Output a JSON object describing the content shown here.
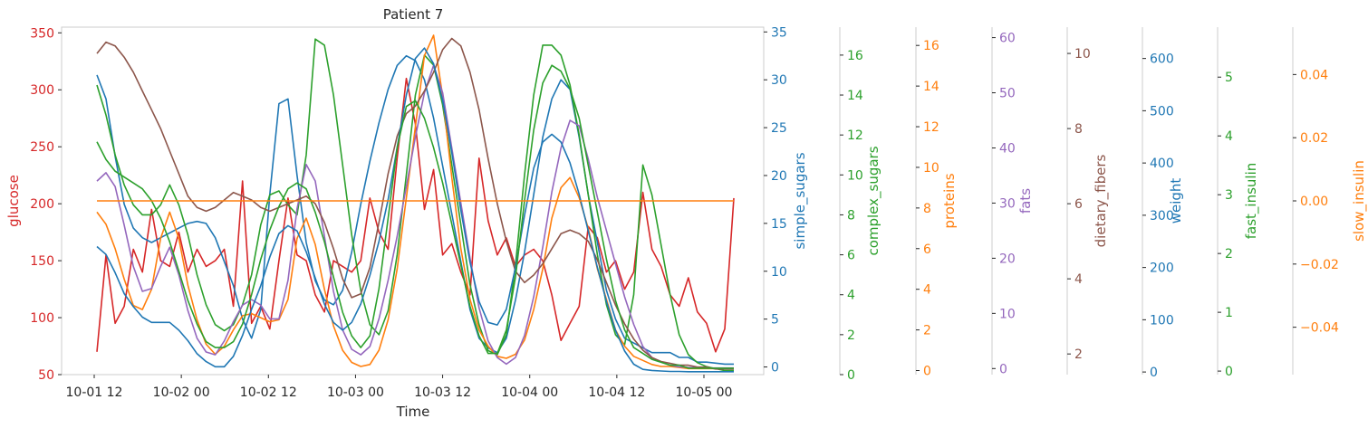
{
  "chart_data": {
    "type": "line",
    "title": "Patient 7",
    "xlabel": "Time",
    "x_ticks": [
      "10-01 12",
      "10-02 00",
      "10-02 12",
      "10-03 00",
      "10-03 12",
      "10-04 00",
      "10-04 12",
      "10-05 00"
    ],
    "grid": false,
    "x": [
      0,
      0.5,
      1,
      1.5,
      2,
      2.5,
      3,
      3.5,
      4,
      4.5,
      5,
      5.5,
      6,
      6.5,
      7,
      7.5,
      8,
      8.5,
      9,
      9.5,
      10,
      10.5,
      11,
      11.5,
      12,
      12.5,
      13,
      13.5,
      14,
      14.5,
      15,
      15.5,
      16,
      16.5,
      17,
      17.5,
      18,
      18.5,
      19,
      19.5,
      20,
      20.5,
      21,
      21.5,
      22,
      22.5,
      23,
      23.5,
      24,
      24.5,
      25,
      25.5,
      26,
      26.5,
      27,
      27.5,
      28,
      28.5,
      29,
      29.5,
      30,
      30.5,
      31,
      31.5,
      32,
      32.5,
      33,
      33.5,
      34,
      34.5,
      35
    ],
    "axes": [
      {
        "name": "glucose",
        "side": "left",
        "color": "#d62728",
        "ylim": [
          50,
          355
        ],
        "ticks": [
          50,
          100,
          150,
          200,
          250,
          300,
          350
        ],
        "tick_labels": [
          "50",
          "100",
          "150",
          "200",
          "250",
          "300",
          "350"
        ]
      },
      {
        "name": "simple_sugars",
        "side": "right",
        "color": "#1f77b4",
        "ylim": [
          -0.8,
          35.5
        ],
        "ticks": [
          0,
          5,
          10,
          15,
          20,
          25,
          30,
          35
        ],
        "tick_labels": [
          "0",
          "5",
          "10",
          "15",
          "20",
          "25",
          "30",
          "35"
        ]
      },
      {
        "name": "complex_sugars",
        "side": "right",
        "color": "#2ca02c",
        "ylim": [
          0,
          17.4
        ],
        "ticks": [
          0,
          2,
          4,
          6,
          8,
          10,
          12,
          14,
          16
        ],
        "tick_labels": [
          "0",
          "2",
          "4",
          "6",
          "8",
          "10",
          "12",
          "14",
          "16"
        ]
      },
      {
        "name": "proteins",
        "side": "right",
        "color": "#ff7f0e",
        "ylim": [
          -0.2,
          16.9
        ],
        "ticks": [
          0,
          2,
          4,
          6,
          8,
          10,
          12,
          14,
          16
        ],
        "tick_labels": [
          "0",
          "2",
          "4",
          "6",
          "8",
          "10",
          "12",
          "14",
          "16"
        ]
      },
      {
        "name": "fats",
        "side": "right",
        "color": "#9467bd",
        "ylim": [
          -1.1,
          61.9
        ],
        "ticks": [
          0,
          10,
          20,
          30,
          40,
          50,
          60
        ],
        "tick_labels": [
          "0",
          "10",
          "20",
          "30",
          "40",
          "50",
          "60"
        ]
      },
      {
        "name": "dietary_fibers",
        "side": "right",
        "color": "#8c564b",
        "ylim": [
          1.45,
          10.7
        ],
        "ticks": [
          2,
          4,
          6,
          8,
          10
        ],
        "tick_labels": [
          "2",
          "4",
          "6",
          "8",
          "10"
        ]
      },
      {
        "name": "weight",
        "side": "right",
        "color": "#1f77b4",
        "ylim": [
          -5,
          660
        ],
        "ticks": [
          0,
          100,
          200,
          300,
          400,
          500,
          600
        ],
        "tick_labels": [
          "0",
          "100",
          "200",
          "300",
          "400",
          "500",
          "600"
        ]
      },
      {
        "name": "fast_insulin",
        "side": "right",
        "color": "#2ca02c",
        "ylim": [
          -0.06,
          5.85
        ],
        "ticks": [
          0,
          1,
          2,
          3,
          4,
          5
        ],
        "tick_labels": [
          "0",
          "1",
          "2",
          "3",
          "4",
          "5"
        ]
      },
      {
        "name": "slow_insulin",
        "side": "right",
        "color": "#ff7f0e",
        "ylim": [
          -0.055,
          0.055
        ],
        "ticks": [
          -0.04,
          -0.02,
          0.0,
          0.02,
          0.04
        ],
        "tick_labels": [
          "−0.04",
          "−0.02",
          "0.00",
          "0.02",
          "0.04"
        ]
      }
    ],
    "series": [
      {
        "name": "glucose",
        "axis": 0,
        "color": "#d62728",
        "values": [
          70,
          155,
          95,
          110,
          160,
          140,
          195,
          150,
          145,
          175,
          140,
          160,
          145,
          150,
          160,
          110,
          220,
          95,
          110,
          90,
          150,
          205,
          155,
          150,
          120,
          105,
          150,
          145,
          140,
          150,
          205,
          175,
          160,
          240,
          310,
          270,
          195,
          230,
          155,
          165,
          140,
          120,
          240,
          185,
          155,
          170,
          145,
          155,
          160,
          150,
          120,
          80,
          95,
          110,
          180,
          170,
          140,
          150,
          125,
          140,
          210,
          160,
          145,
          120,
          110,
          135,
          105,
          95,
          70,
          90,
          205
        ]
      },
      {
        "name": "simple_sugars",
        "axis": 1,
        "color": "#1f77b4",
        "values": [
          30.5,
          28,
          22,
          17,
          14.5,
          13.5,
          13,
          13.5,
          14,
          14.5,
          15,
          15.2,
          15,
          13.5,
          11,
          8.5,
          5,
          3,
          6,
          18,
          27.5,
          28,
          20,
          13,
          9,
          7,
          6.5,
          8,
          12,
          17,
          21.5,
          25.5,
          29,
          31.5,
          32.5,
          32,
          30,
          26,
          21,
          16,
          11,
          6,
          3,
          2,
          1.5,
          3,
          7,
          12,
          18,
          24,
          28,
          30,
          29,
          24,
          18,
          13,
          8,
          5,
          3,
          2.5,
          2,
          1.5,
          1.5,
          1.5,
          1,
          1,
          0.5,
          0.5,
          0.4,
          0.3,
          0.3
        ]
      },
      {
        "name": "complex_sugars",
        "axis": 2,
        "color": "#2ca02c",
        "values": [
          14.5,
          13,
          11,
          9.5,
          8.5,
          8,
          8,
          8.5,
          9.5,
          8.5,
          7,
          5,
          3.5,
          2.5,
          2.2,
          2.5,
          3.5,
          5,
          7.5,
          9,
          9.2,
          8.5,
          8,
          11,
          16.8,
          16.5,
          14,
          10.5,
          7,
          4.2,
          2.5,
          2,
          3.2,
          6,
          10,
          14,
          16,
          15.5,
          13.5,
          10.5,
          7.5,
          4.5,
          2.5,
          1.2,
          1,
          2,
          5.5,
          10,
          14,
          16.5,
          16.5,
          16,
          14.5,
          12,
          9,
          6,
          3.5,
          2,
          1.5,
          4,
          10.5,
          9,
          6.5,
          4,
          2,
          1,
          0.6,
          0.4,
          0.3,
          0.2,
          0.2
        ]
      },
      {
        "name": "proteins",
        "axis": 3,
        "color": "#ff7f0e",
        "values": [
          7.8,
          7.2,
          6,
          4.5,
          3.2,
          3,
          4,
          6.5,
          7.8,
          6.5,
          4.2,
          2.5,
          1.3,
          0.8,
          1.2,
          2,
          2.7,
          2.8,
          2.6,
          2.4,
          2.5,
          3.5,
          6.5,
          7.5,
          6.2,
          4,
          2.2,
          1,
          0.4,
          0.2,
          0.3,
          1,
          2.5,
          5,
          8.5,
          12,
          15.5,
          16.5,
          13.5,
          9.5,
          6,
          3.5,
          2,
          1.2,
          0.7,
          0.6,
          0.8,
          1.5,
          3,
          5,
          7.5,
          9,
          9.5,
          8.5,
          7,
          5,
          3.5,
          2,
          1.2,
          0.7,
          0.5,
          0.3,
          0.2,
          0.2,
          0.15,
          0.1,
          0.1,
          0.1,
          0.1,
          0.1,
          0.1
        ]
      },
      {
        "name": "fats",
        "axis": 4,
        "color": "#9467bd",
        "values": [
          34,
          35.5,
          33,
          26,
          18.5,
          14,
          14.5,
          18.5,
          22,
          17,
          10.5,
          5.5,
          3,
          2.5,
          5,
          8.5,
          11.5,
          12.5,
          11.5,
          9,
          9,
          16,
          29,
          37,
          34,
          24,
          14,
          7,
          3.5,
          2.5,
          4,
          9,
          16,
          24,
          33,
          42,
          50,
          55,
          50,
          40,
          30,
          20,
          11,
          5,
          2,
          0.8,
          2,
          6,
          13,
          22,
          32,
          40,
          45,
          44,
          38,
          31,
          25,
          19,
          13,
          8,
          4,
          2,
          1.2,
          0.6,
          0.3,
          0.2,
          0.15,
          0.1,
          0.1,
          0.1,
          0.1
        ]
      },
      {
        "name": "dietary_fibers",
        "axis": 5,
        "color": "#8c564b",
        "values": [
          10,
          10.3,
          10.2,
          9.9,
          9.5,
          9,
          8.5,
          8,
          7.4,
          6.8,
          6.2,
          5.9,
          5.8,
          5.9,
          6.1,
          6.3,
          6.2,
          6.1,
          5.9,
          5.8,
          5.9,
          6,
          6.1,
          6.2,
          6,
          5.5,
          4.8,
          4,
          3.5,
          3.6,
          4.3,
          5.5,
          6.8,
          7.8,
          8.4,
          8.6,
          9,
          9.5,
          10.1,
          10.4,
          10.2,
          9.5,
          8.5,
          7.2,
          6,
          5,
          4.2,
          3.9,
          4.1,
          4.4,
          4.8,
          5.2,
          5.3,
          5.2,
          5,
          4.5,
          3.9,
          3.3,
          2.8,
          2.4,
          2.1,
          1.9,
          1.8,
          1.75,
          1.7,
          1.7,
          1.65,
          1.65,
          1.6,
          1.6,
          1.6
        ]
      },
      {
        "name": "weight",
        "axis": 6,
        "color": "#1f77b4",
        "values": [
          240,
          225,
          190,
          150,
          125,
          105,
          95,
          95,
          95,
          80,
          60,
          35,
          20,
          10,
          10,
          30,
          70,
          120,
          165,
          220,
          265,
          280,
          270,
          230,
          180,
          130,
          95,
          80,
          95,
          130,
          185,
          250,
          330,
          430,
          530,
          600,
          620,
          590,
          520,
          420,
          310,
          210,
          135,
          95,
          90,
          120,
          200,
          300,
          390,
          440,
          455,
          440,
          400,
          340,
          270,
          200,
          135,
          80,
          40,
          15,
          5,
          3,
          2,
          1,
          1,
          0.5,
          0.5,
          0.5,
          0.5,
          0.5,
          0.5
        ]
      },
      {
        "name": "fast_insulin",
        "axis": 7,
        "color": "#2ca02c",
        "values": [
          3.9,
          3.6,
          3.4,
          3.3,
          3.2,
          3.1,
          2.9,
          2.6,
          2.2,
          1.7,
          1.2,
          0.8,
          0.5,
          0.4,
          0.4,
          0.5,
          0.8,
          1.3,
          1.9,
          2.4,
          2.8,
          3.1,
          3.2,
          3.1,
          2.7,
          2.2,
          1.6,
          1,
          0.6,
          0.4,
          0.6,
          1.4,
          2.6,
          3.8,
          4.5,
          4.6,
          4.3,
          3.8,
          3.2,
          2.5,
          1.8,
          1.1,
          0.6,
          0.3,
          0.3,
          0.7,
          1.6,
          2.9,
          4.1,
          4.9,
          5.2,
          5.1,
          4.8,
          4.3,
          3.5,
          2.7,
          1.9,
          1.2,
          0.7,
          0.4,
          0.3,
          0.2,
          0.15,
          0.1,
          0.1,
          0.05,
          0.05,
          0.05,
          0.05,
          0.05,
          0.05
        ]
      },
      {
        "name": "slow_insulin",
        "axis": 8,
        "color": "#ff7f0e",
        "values": [
          0,
          0,
          0,
          0,
          0,
          0,
          0,
          0,
          0,
          0,
          0,
          0,
          0,
          0,
          0,
          0,
          0,
          0,
          0,
          0,
          0,
          0,
          0,
          0,
          0,
          0,
          0,
          0,
          0,
          0,
          0,
          0,
          0,
          0,
          0,
          0,
          0,
          0,
          0,
          0,
          0,
          0,
          0,
          0,
          0,
          0,
          0,
          0,
          0,
          0,
          0,
          0,
          0,
          0,
          0,
          0,
          0,
          0,
          0,
          0,
          0,
          0,
          0,
          0,
          0,
          0,
          0,
          0,
          0,
          0,
          0
        ]
      }
    ]
  }
}
